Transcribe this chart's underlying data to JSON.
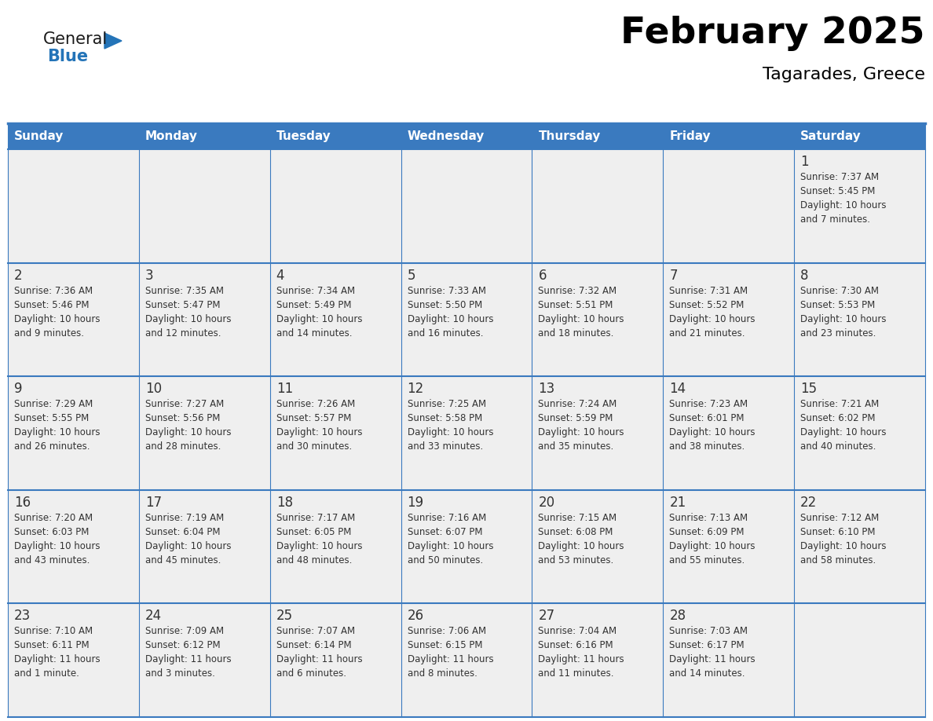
{
  "title": "February 2025",
  "subtitle": "Tagarades, Greece",
  "header_bg": "#3a7abf",
  "header_text_color": "#ffffff",
  "cell_bg": "#efefef",
  "border_color": "#3a7abf",
  "text_color": "#333333",
  "day_names": [
    "Sunday",
    "Monday",
    "Tuesday",
    "Wednesday",
    "Thursday",
    "Friday",
    "Saturday"
  ],
  "logo_general_color": "#1a1a1a",
  "logo_blue_color": "#2474b8",
  "logo_triangle_color": "#2474b8",
  "days": [
    {
      "day": 1,
      "col": 6,
      "row": 0,
      "sunrise": "7:37 AM",
      "sunset": "5:45 PM",
      "daylight_line1": "Daylight: 10 hours",
      "daylight_line2": "and 7 minutes."
    },
    {
      "day": 2,
      "col": 0,
      "row": 1,
      "sunrise": "7:36 AM",
      "sunset": "5:46 PM",
      "daylight_line1": "Daylight: 10 hours",
      "daylight_line2": "and 9 minutes."
    },
    {
      "day": 3,
      "col": 1,
      "row": 1,
      "sunrise": "7:35 AM",
      "sunset": "5:47 PM",
      "daylight_line1": "Daylight: 10 hours",
      "daylight_line2": "and 12 minutes."
    },
    {
      "day": 4,
      "col": 2,
      "row": 1,
      "sunrise": "7:34 AM",
      "sunset": "5:49 PM",
      "daylight_line1": "Daylight: 10 hours",
      "daylight_line2": "and 14 minutes."
    },
    {
      "day": 5,
      "col": 3,
      "row": 1,
      "sunrise": "7:33 AM",
      "sunset": "5:50 PM",
      "daylight_line1": "Daylight: 10 hours",
      "daylight_line2": "and 16 minutes."
    },
    {
      "day": 6,
      "col": 4,
      "row": 1,
      "sunrise": "7:32 AM",
      "sunset": "5:51 PM",
      "daylight_line1": "Daylight: 10 hours",
      "daylight_line2": "and 18 minutes."
    },
    {
      "day": 7,
      "col": 5,
      "row": 1,
      "sunrise": "7:31 AM",
      "sunset": "5:52 PM",
      "daylight_line1": "Daylight: 10 hours",
      "daylight_line2": "and 21 minutes."
    },
    {
      "day": 8,
      "col": 6,
      "row": 1,
      "sunrise": "7:30 AM",
      "sunset": "5:53 PM",
      "daylight_line1": "Daylight: 10 hours",
      "daylight_line2": "and 23 minutes."
    },
    {
      "day": 9,
      "col": 0,
      "row": 2,
      "sunrise": "7:29 AM",
      "sunset": "5:55 PM",
      "daylight_line1": "Daylight: 10 hours",
      "daylight_line2": "and 26 minutes."
    },
    {
      "day": 10,
      "col": 1,
      "row": 2,
      "sunrise": "7:27 AM",
      "sunset": "5:56 PM",
      "daylight_line1": "Daylight: 10 hours",
      "daylight_line2": "and 28 minutes."
    },
    {
      "day": 11,
      "col": 2,
      "row": 2,
      "sunrise": "7:26 AM",
      "sunset": "5:57 PM",
      "daylight_line1": "Daylight: 10 hours",
      "daylight_line2": "and 30 minutes."
    },
    {
      "day": 12,
      "col": 3,
      "row": 2,
      "sunrise": "7:25 AM",
      "sunset": "5:58 PM",
      "daylight_line1": "Daylight: 10 hours",
      "daylight_line2": "and 33 minutes."
    },
    {
      "day": 13,
      "col": 4,
      "row": 2,
      "sunrise": "7:24 AM",
      "sunset": "5:59 PM",
      "daylight_line1": "Daylight: 10 hours",
      "daylight_line2": "and 35 minutes."
    },
    {
      "day": 14,
      "col": 5,
      "row": 2,
      "sunrise": "7:23 AM",
      "sunset": "6:01 PM",
      "daylight_line1": "Daylight: 10 hours",
      "daylight_line2": "and 38 minutes."
    },
    {
      "day": 15,
      "col": 6,
      "row": 2,
      "sunrise": "7:21 AM",
      "sunset": "6:02 PM",
      "daylight_line1": "Daylight: 10 hours",
      "daylight_line2": "and 40 minutes."
    },
    {
      "day": 16,
      "col": 0,
      "row": 3,
      "sunrise": "7:20 AM",
      "sunset": "6:03 PM",
      "daylight_line1": "Daylight: 10 hours",
      "daylight_line2": "and 43 minutes."
    },
    {
      "day": 17,
      "col": 1,
      "row": 3,
      "sunrise": "7:19 AM",
      "sunset": "6:04 PM",
      "daylight_line1": "Daylight: 10 hours",
      "daylight_line2": "and 45 minutes."
    },
    {
      "day": 18,
      "col": 2,
      "row": 3,
      "sunrise": "7:17 AM",
      "sunset": "6:05 PM",
      "daylight_line1": "Daylight: 10 hours",
      "daylight_line2": "and 48 minutes."
    },
    {
      "day": 19,
      "col": 3,
      "row": 3,
      "sunrise": "7:16 AM",
      "sunset": "6:07 PM",
      "daylight_line1": "Daylight: 10 hours",
      "daylight_line2": "and 50 minutes."
    },
    {
      "day": 20,
      "col": 4,
      "row": 3,
      "sunrise": "7:15 AM",
      "sunset": "6:08 PM",
      "daylight_line1": "Daylight: 10 hours",
      "daylight_line2": "and 53 minutes."
    },
    {
      "day": 21,
      "col": 5,
      "row": 3,
      "sunrise": "7:13 AM",
      "sunset": "6:09 PM",
      "daylight_line1": "Daylight: 10 hours",
      "daylight_line2": "and 55 minutes."
    },
    {
      "day": 22,
      "col": 6,
      "row": 3,
      "sunrise": "7:12 AM",
      "sunset": "6:10 PM",
      "daylight_line1": "Daylight: 10 hours",
      "daylight_line2": "and 58 minutes."
    },
    {
      "day": 23,
      "col": 0,
      "row": 4,
      "sunrise": "7:10 AM",
      "sunset": "6:11 PM",
      "daylight_line1": "Daylight: 11 hours",
      "daylight_line2": "and 1 minute."
    },
    {
      "day": 24,
      "col": 1,
      "row": 4,
      "sunrise": "7:09 AM",
      "sunset": "6:12 PM",
      "daylight_line1": "Daylight: 11 hours",
      "daylight_line2": "and 3 minutes."
    },
    {
      "day": 25,
      "col": 2,
      "row": 4,
      "sunrise": "7:07 AM",
      "sunset": "6:14 PM",
      "daylight_line1": "Daylight: 11 hours",
      "daylight_line2": "and 6 minutes."
    },
    {
      "day": 26,
      "col": 3,
      "row": 4,
      "sunrise": "7:06 AM",
      "sunset": "6:15 PM",
      "daylight_line1": "Daylight: 11 hours",
      "daylight_line2": "and 8 minutes."
    },
    {
      "day": 27,
      "col": 4,
      "row": 4,
      "sunrise": "7:04 AM",
      "sunset": "6:16 PM",
      "daylight_line1": "Daylight: 11 hours",
      "daylight_line2": "and 11 minutes."
    },
    {
      "day": 28,
      "col": 5,
      "row": 4,
      "sunrise": "7:03 AM",
      "sunset": "6:17 PM",
      "daylight_line1": "Daylight: 11 hours",
      "daylight_line2": "and 14 minutes."
    }
  ]
}
